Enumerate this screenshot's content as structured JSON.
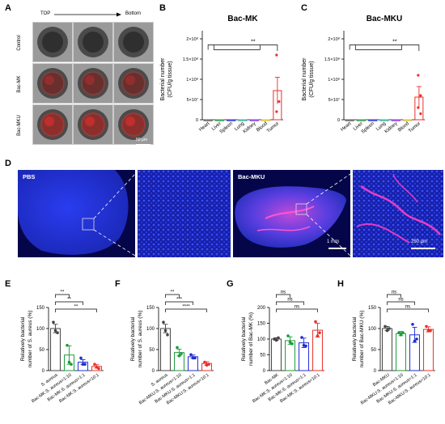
{
  "panels": {
    "A": "A",
    "B": "B",
    "C": "C",
    "D": "D",
    "E": "E",
    "F": "F",
    "G": "G",
    "H": "H"
  },
  "panel_a": {
    "header_left": "TOP",
    "header_right": "Bottom",
    "rows": [
      "Control",
      "Bac-MK",
      "Bac-MKU"
    ],
    "scale": "50 μm"
  },
  "panel_d": {
    "label_pbs": "PBS",
    "label_mku": "Bac-MKU",
    "scale_1": "1 mm",
    "scale_2": "250 μm"
  },
  "colors": {
    "heart": "#555555",
    "liver": "#1a9b3a",
    "spleen": "#1f2bd6",
    "lung": "#2ab0a0",
    "kidney": "#8a2be2",
    "blood": "#e0c020",
    "tumor": "#e8302a",
    "control": "#444444",
    "green": "#1a9b3a",
    "blue": "#1f2bd6",
    "red": "#e8302a"
  },
  "chart_data": [
    {
      "type": "bar",
      "id": "B",
      "title": "Bac-MK",
      "ylabel": "Bacterial number\n(CFU/g tissue)",
      "categories": [
        "Heart",
        "Liver",
        "Spleen",
        "Lung",
        "Kidney",
        "Blood",
        "Tumor"
      ],
      "values": [
        0,
        0,
        0,
        0,
        0,
        0,
        72000000.0
      ],
      "errors": [
        0,
        0,
        0,
        0,
        0,
        0,
        33000000.0
      ],
      "points": [
        [],
        [],
        [],
        [],
        [],
        [],
        [
          160000000.0,
          45000000.0,
          20000000.0
        ]
      ],
      "yticks": [
        "0",
        "5×10⁷",
        "1×10⁸",
        "1.5×10⁸",
        "2×10⁸"
      ],
      "ylim": [
        0,
        200000000.0
      ],
      "sig": "**"
    },
    {
      "type": "bar",
      "id": "C",
      "title": "Bac-MKU",
      "ylabel": "Bacterial number\n(CFU/g tissue)",
      "categories": [
        "Heart",
        "Liver",
        "Spleen",
        "Lung",
        "Kidney",
        "Blood",
        "Tumor"
      ],
      "values": [
        0,
        0,
        0,
        0,
        0,
        0,
        56000000.0
      ],
      "errors": [
        0,
        0,
        0,
        0,
        0,
        0,
        26000000.0
      ],
      "points": [
        [],
        [],
        [],
        [],
        [],
        [],
        [
          110000000.0,
          60000000.0,
          30000000.0,
          15000000.0
        ]
      ],
      "yticks": [
        "0",
        "5×10⁷",
        "1×10⁸",
        "1.5×10⁸",
        "2×10⁸"
      ],
      "ylim": [
        0,
        200000000.0
      ],
      "sig": "**"
    },
    {
      "type": "bar",
      "id": "E",
      "ylabel": "Relatively bacterial\nnumber of S. aureus (%)",
      "categories": [
        "S. aureus",
        "Bac-MK:S. aureus=1:10",
        "Bac-MK:S. aureus=1:1",
        "Bac-MK:S. aureus=10:1"
      ],
      "values": [
        100,
        37,
        20,
        10
      ],
      "errors": [
        10,
        22,
        6,
        4
      ],
      "points": [
        [
          115,
          95,
          90
        ],
        [
          60,
          20,
          15
        ],
        [
          30,
          15,
          15
        ],
        [
          15,
          8,
          5
        ]
      ],
      "yticks": [
        "0",
        "50",
        "100",
        "150"
      ],
      "ylim": [
        0,
        150
      ],
      "sig": [
        "**",
        "**",
        "**"
      ]
    },
    {
      "type": "bar",
      "id": "F",
      "ylabel": "Relatively bacterial\nnumber of S. aureus (%)",
      "categories": [
        "S. aureus",
        "Bac-MKU:S. aureus=1:10",
        "Bac-MKU:S. aureus=1:1",
        "Bac-MKU:S. aureus=10:1"
      ],
      "values": [
        100,
        43,
        33,
        17
      ],
      "errors": [
        10,
        8,
        4,
        4
      ],
      "points": [
        [
          115,
          95,
          85
        ],
        [
          55,
          35,
          40
        ],
        [
          38,
          30,
          30
        ],
        [
          20,
          13,
          15
        ]
      ],
      "yticks": [
        "0",
        "50",
        "100",
        "150"
      ],
      "ylim": [
        0,
        150
      ],
      "sig": [
        "**",
        "***",
        "****"
      ]
    },
    {
      "type": "bar",
      "id": "G",
      "ylabel": "Relatively bacterial\nnumber of Bac-MK (%)",
      "categories": [
        "Bac-MK",
        "Bac-MK:S. aureus=1:10",
        "Bac-MK:S. aureus=1:1",
        "Bac-MK:S. aureus=10:1"
      ],
      "values": [
        100,
        95,
        88,
        128
      ],
      "errors": [
        4,
        12,
        15,
        22
      ],
      "points": [
        [
          100,
          96,
          104
        ],
        [
          110,
          90,
          85
        ],
        [
          105,
          80,
          78
        ],
        [
          155,
          110,
          120
        ]
      ],
      "yticks": [
        "0",
        "50",
        "100",
        "150",
        "200"
      ],
      "ylim": [
        0,
        200
      ],
      "sig": [
        "ns",
        "ns",
        "ns"
      ]
    },
    {
      "type": "bar",
      "id": "H",
      "ylabel": "Relatively bacterial\nnumber of Bac-MKU (%)",
      "categories": [
        "Bac-MKU",
        "Bac-MKU:S. aureus=1:10",
        "Bac-MKU:S. aureus=1:1",
        "Bac-MKU:S. aureus=10:1"
      ],
      "values": [
        100,
        88,
        85,
        98
      ],
      "errors": [
        5,
        5,
        18,
        6
      ],
      "points": [
        [
          105,
          95,
          100
        ],
        [
          90,
          85,
          90
        ],
        [
          110,
          70,
          75
        ],
        [
          105,
          95,
          95
        ]
      ],
      "yticks": [
        "0",
        "50",
        "100",
        "150"
      ],
      "ylim": [
        0,
        150
      ],
      "sig": [
        "ns",
        "ns",
        "ns"
      ]
    }
  ]
}
